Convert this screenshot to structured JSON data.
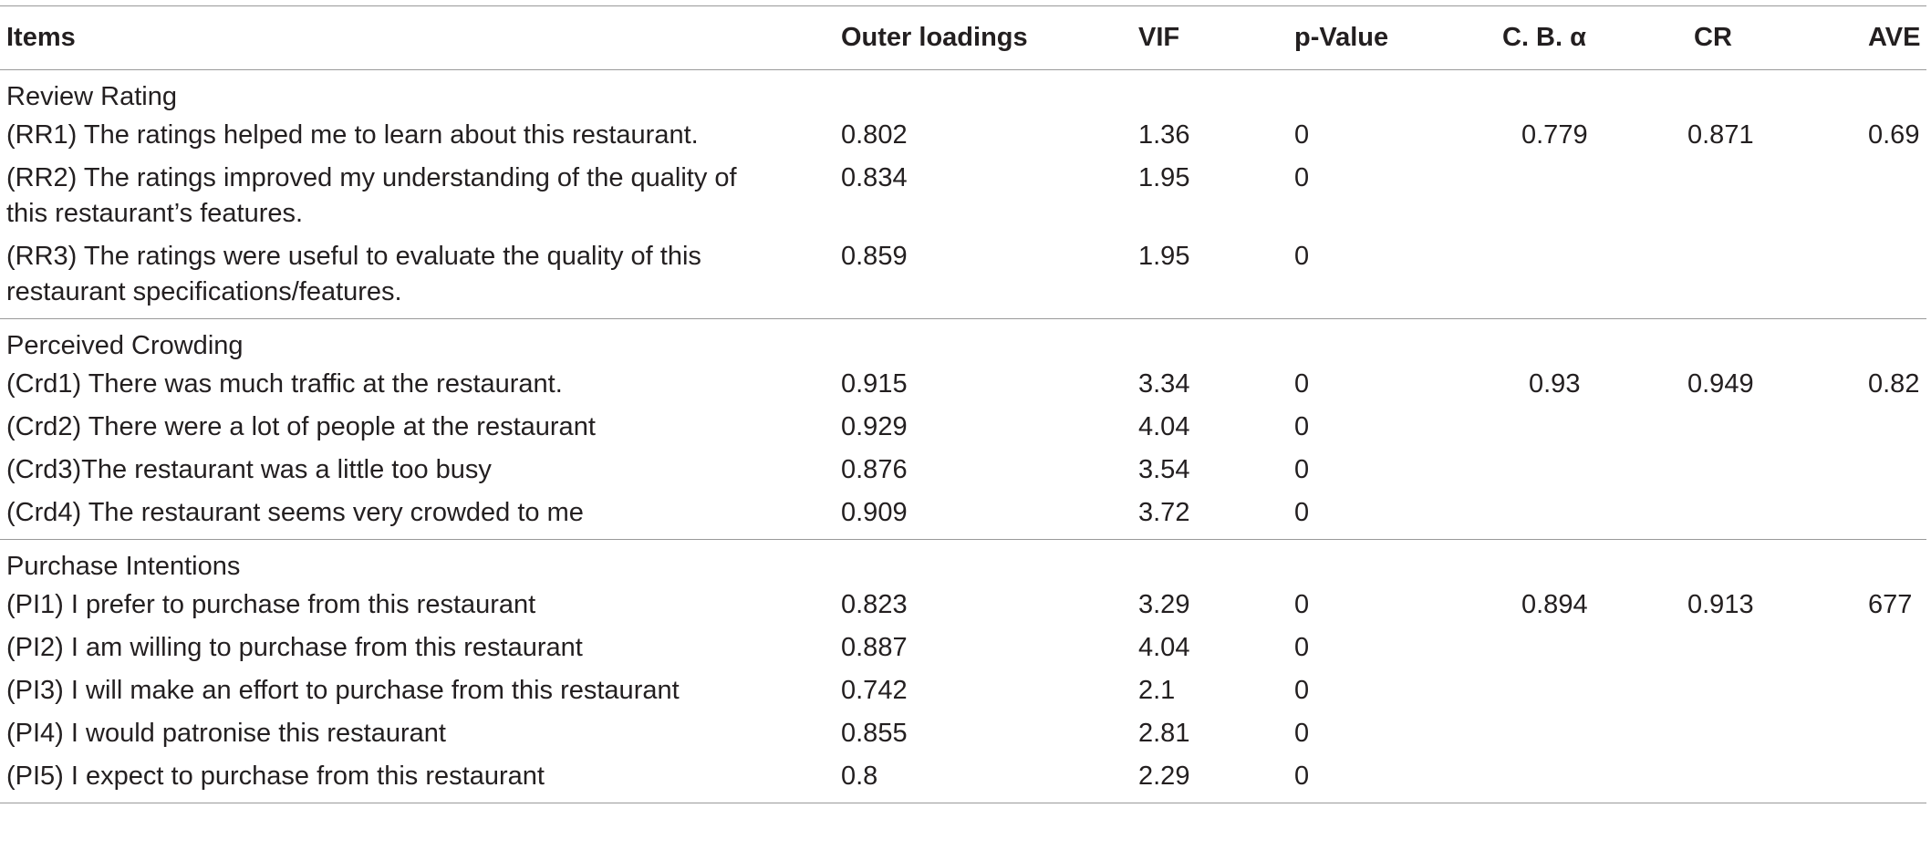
{
  "headers": {
    "items": "Items",
    "outer_loadings": "Outer loadings",
    "vif": "VIF",
    "p_value": "p-Value",
    "cb_alpha": "C. B. α",
    "cr": "CR",
    "ave": "AVE"
  },
  "groups": [
    {
      "title": "Review Rating",
      "cb_alpha": "0.779",
      "cr": "0.871",
      "ave": "0.69",
      "rows": [
        {
          "item": "(RR1) The ratings helped me to learn about this restaurant.",
          "outer_loading": "0.802",
          "vif": "1.36",
          "p_value": "0"
        },
        {
          "item": "(RR2) The ratings improved my understanding of the quality of this restaurant’s features.",
          "outer_loading": "0.834",
          "vif": "1.95",
          "p_value": "0"
        },
        {
          "item": "(RR3) The ratings were useful to evaluate the quality of this restaurant specifications/features.",
          "outer_loading": "0.859",
          "vif": "1.95",
          "p_value": "0"
        }
      ]
    },
    {
      "title": "Perceived Crowding",
      "cb_alpha": "0.93",
      "cr": "0.949",
      "ave": "0.82",
      "rows": [
        {
          "item": "(Crd1) There was much traffic at the restaurant.",
          "outer_loading": "0.915",
          "vif": "3.34",
          "p_value": "0"
        },
        {
          "item": "(Crd2) There were a lot of people at the restaurant",
          "outer_loading": "0.929",
          "vif": "4.04",
          "p_value": "0"
        },
        {
          "item": "(Crd3)The restaurant was a little too busy",
          "outer_loading": "0.876",
          "vif": "3.54",
          "p_value": "0"
        },
        {
          "item": "(Crd4) The restaurant seems very crowded to me",
          "outer_loading": "0.909",
          "vif": "3.72",
          "p_value": "0"
        }
      ]
    },
    {
      "title": "Purchase Intentions",
      "cb_alpha": "0.894",
      "cr": "0.913",
      "ave": "677",
      "rows": [
        {
          "item": "(PI1) I prefer to purchase from this restaurant",
          "outer_loading": "0.823",
          "vif": "3.29",
          "p_value": "0"
        },
        {
          "item": "(PI2) I am willing to purchase from this restaurant",
          "outer_loading": "0.887",
          "vif": "4.04",
          "p_value": "0"
        },
        {
          "item": "(PI3) I will make an effort to purchase from this restaurant",
          "outer_loading": "0.742",
          "vif": "2.1",
          "p_value": "0"
        },
        {
          "item": "(PI4) I would patronise this restaurant",
          "outer_loading": "0.855",
          "vif": "2.81",
          "p_value": "0"
        },
        {
          "item": "(PI5) I expect to purchase from this restaurant",
          "outer_loading": "0.8",
          "vif": "2.29",
          "p_value": "0"
        }
      ]
    }
  ]
}
